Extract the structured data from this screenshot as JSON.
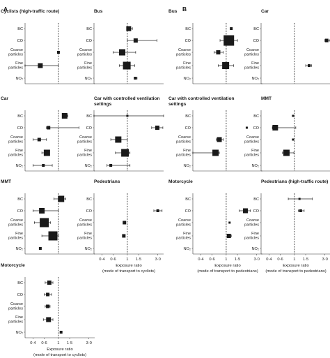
{
  "section_labels": [
    "A",
    "B"
  ],
  "categories": [
    "BC",
    "CO",
    "Coarse|particles",
    "Fine|particles",
    "NO₂"
  ],
  "x_ticks": [
    "0·4",
    "0·6",
    "1",
    "1·5",
    "3·0"
  ],
  "x_axis_label": [
    "Exposure ratio",
    "(mode of transport to cyclists)"
  ],
  "x_axis_label_b": [
    "Exposure ratio",
    "(mode of transport to pedestrians)"
  ],
  "chart_data": {
    "type": "scatter",
    "x_scale": "log",
    "xlim": [
      0.3,
      3.7
    ],
    "reference_line": 1,
    "panels": [
      {
        "id": "A1",
        "title": "Cyclists (high-traffic route)",
        "points": [
          null,
          null,
          {
            "v": 1.0
          },
          {
            "v": 0.52,
            "lo": 0.3,
            "hi": 1.0
          },
          null
        ]
      },
      {
        "id": "A2",
        "title": "Bus",
        "points": [
          {
            "v": 1.05,
            "lo": 1.0,
            "hi": 1.2
          },
          {
            "v": 1.35,
            "lo": 1.0,
            "hi": 2.9
          },
          {
            "v": 0.83,
            "lo": 0.6,
            "hi": 1.35
          },
          {
            "v": 0.98,
            "lo": 0.75,
            "hi": 1.3
          },
          {
            "v": 1.33,
            "lo": 1.28,
            "hi": 1.42
          }
        ]
      },
      {
        "id": "A3",
        "title": "Car",
        "points": [
          {
            "v": 1.25,
            "lo": 1.15,
            "hi": 1.4
          },
          {
            "v": 0.7,
            "lo": 0.65,
            "hi": 2.1
          },
          {
            "v": 0.5,
            "lo": 0.4,
            "hi": 0.65
          },
          {
            "v": 0.66,
            "lo": 0.55,
            "hi": 0.72
          },
          {
            "v": 0.58,
            "lo": 0.4,
            "hi": 0.8
          }
        ]
      },
      {
        "id": "A4",
        "title": "Car with controlled ventilation|settings",
        "points": [
          {
            "v": 1.0,
            "lo": 0.3,
            "hi": 3.7
          },
          {
            "v": 2.95,
            "lo": 2.4,
            "hi": 3.6
          },
          {
            "v": 0.72,
            "lo": 0.55,
            "hi": 1.0
          },
          {
            "v": 0.92,
            "lo": 0.65,
            "hi": 1.1
          },
          {
            "v": 0.55,
            "lo": 0.48,
            "hi": 1.1
          }
        ]
      },
      {
        "id": "A5",
        "title": "MMT",
        "points": [
          {
            "v": 1.1,
            "lo": 0.85,
            "hi": 1.3
          },
          {
            "v": 0.55,
            "lo": 0.4,
            "hi": 1.0
          },
          {
            "v": 0.6,
            "lo": 0.42,
            "hi": 0.75
          },
          {
            "v": 0.82,
            "lo": 0.55,
            "hi": 1.0
          },
          {
            "v": 0.52
          }
        ]
      },
      {
        "id": "A6",
        "title": "Pedestrians",
        "points": [
          null,
          {
            "v": 3.0,
            "lo": 2.6,
            "hi": 3.5
          },
          {
            "v": 0.9
          },
          {
            "v": 0.88
          },
          null
        ]
      },
      {
        "id": "A7",
        "title": "Motorcycle",
        "points": [
          {
            "v": 0.72,
            "lo": 0.62,
            "hi": 0.82
          },
          {
            "v": 0.68,
            "lo": 0.6,
            "hi": 0.78
          },
          {
            "v": 0.68,
            "lo": 0.62,
            "hi": 0.74
          },
          {
            "v": 0.7,
            "lo": 0.58,
            "hi": 0.82
          },
          {
            "v": 1.1
          }
        ]
      },
      {
        "id": "B1",
        "title": "Bus",
        "points": [
          {
            "v": 1.2
          },
          {
            "v": 1.1,
            "lo": 0.8,
            "hi": 1.5
          },
          {
            "v": 0.75,
            "lo": 0.65,
            "hi": 0.9
          },
          {
            "v": 0.98,
            "lo": 0.75,
            "hi": 1.3
          },
          null
        ]
      },
      {
        "id": "B2",
        "title": "Car",
        "points": [
          null,
          {
            "v": 3.2,
            "lo": 3.0,
            "hi": 3.6
          },
          null,
          {
            "v": 1.7,
            "lo": 1.5,
            "hi": 1.85
          },
          null
        ]
      },
      {
        "id": "B3",
        "title": "Car with controlled ventilation|settings",
        "points": [
          null,
          {
            "v": 2.1
          },
          {
            "v": 0.78,
            "lo": 0.7,
            "hi": 0.9
          },
          {
            "v": 0.68,
            "lo": 0.3,
            "hi": 0.78
          },
          null
        ]
      },
      {
        "id": "B4",
        "title": "MMT",
        "points": [
          {
            "v": 0.95
          },
          {
            "v": 0.5,
            "lo": 0.45,
            "hi": 1.05
          },
          {
            "v": 0.95
          },
          {
            "v": 0.75,
            "lo": 0.65,
            "hi": 0.98
          },
          null
        ]
      },
      {
        "id": "B5",
        "title": "Motorcycle",
        "points": [
          null,
          {
            "v": 2.0,
            "lo": 1.6,
            "hi": 2.4
          },
          {
            "v": 1.13
          },
          {
            "v": 1.1,
            "lo": 1.05,
            "hi": 1.2
          },
          null
        ]
      },
      {
        "id": "B6",
        "title": "Pedestrians (high-traffic route)",
        "points": [
          {
            "v": 1.2,
            "lo": 0.8,
            "hi": 1.9
          },
          {
            "v": 1.25,
            "lo": 1.15,
            "hi": 1.42
          },
          null,
          null,
          null
        ]
      }
    ]
  }
}
